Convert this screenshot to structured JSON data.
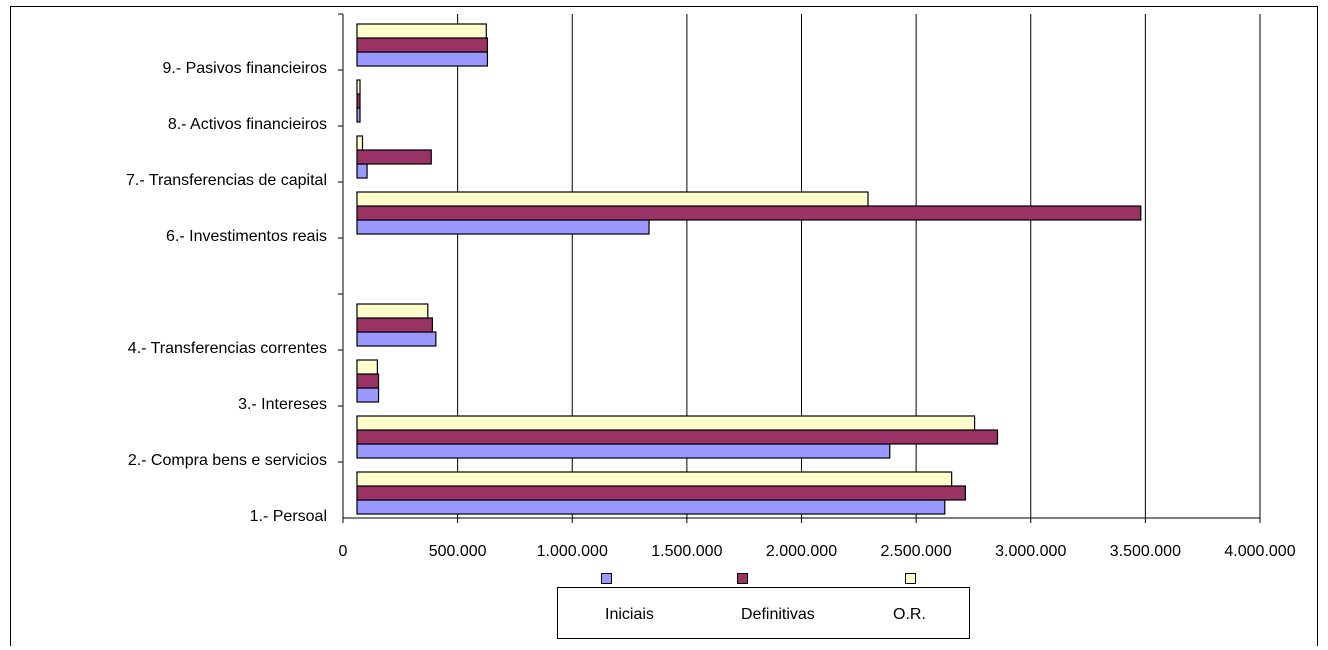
{
  "colors": {
    "Iniciais": "#9999ff",
    "Definitivas": "#993366",
    "O.R.": "#ffffcc"
  },
  "chart_data": {
    "type": "bar",
    "orientation": "horizontal",
    "title": "",
    "xlabel": "",
    "ylabel": "",
    "xlim": [
      0,
      4000000
    ],
    "grid": true,
    "legend_position": "bottom",
    "x_tick_labels": [
      "0",
      "500.000",
      "1.000.000",
      "1.500.000",
      "2.000.000",
      "2.500.000",
      "3.000.000",
      "3.500.000",
      "4.000.000"
    ],
    "x_ticks": [
      0,
      500000,
      1000000,
      1500000,
      2000000,
      2500000,
      3000000,
      3500000,
      4000000
    ],
    "categories": [
      "1.- Persoal",
      "2.- Compra bens e servicios",
      "3.- Intereses",
      "4.- Transferencias correntes",
      "",
      "6.- Investimentos reais",
      "7.- Transferencias de capital",
      "8.- Activos financieiros",
      "9.- Pasivos financieiros"
    ],
    "series": [
      {
        "name": "Iniciais",
        "values": [
          2625000,
          2385000,
          155000,
          405000,
          0,
          1335000,
          105000,
          12000,
          630000
        ]
      },
      {
        "name": "Definitivas",
        "values": [
          2715000,
          2855000,
          155000,
          390000,
          0,
          3480000,
          385000,
          12000,
          630000
        ]
      },
      {
        "name": "O.R.",
        "values": [
          2655000,
          2755000,
          150000,
          370000,
          0,
          2290000,
          85000,
          12000,
          625000
        ]
      }
    ]
  }
}
